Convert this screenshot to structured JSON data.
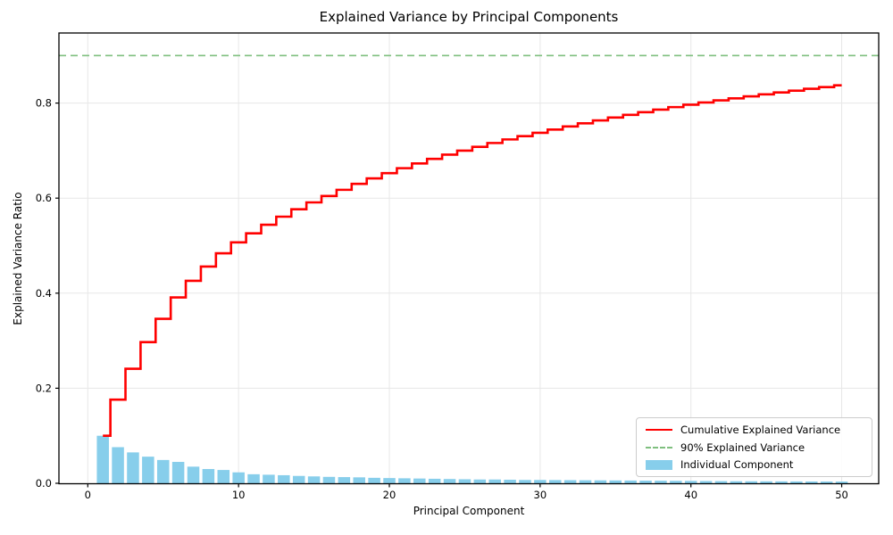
{
  "window": {
    "background": "#ffffff"
  },
  "chart_data": {
    "type": "bar+step-line",
    "title": "Explained Variance by Principal Components",
    "xlabel": "Principal Component",
    "ylabel": "Explained Variance Ratio",
    "x": [
      1,
      2,
      3,
      4,
      5,
      6,
      7,
      8,
      9,
      10,
      11,
      12,
      13,
      14,
      15,
      16,
      17,
      18,
      19,
      20,
      21,
      22,
      23,
      24,
      25,
      26,
      27,
      28,
      29,
      30,
      31,
      32,
      33,
      34,
      35,
      36,
      37,
      38,
      39,
      40,
      41,
      42,
      43,
      44,
      45,
      46,
      47,
      48,
      49,
      50
    ],
    "series": [
      {
        "name": "Cumulative Explained Variance",
        "type": "step",
        "style": "solid",
        "color": "#ff0000",
        "values": [
          0.1,
          0.176,
          0.241,
          0.297,
          0.346,
          0.391,
          0.426,
          0.456,
          0.484,
          0.507,
          0.526,
          0.544,
          0.561,
          0.5765,
          0.591,
          0.6045,
          0.6175,
          0.63,
          0.6415,
          0.6525,
          0.663,
          0.673,
          0.6825,
          0.6915,
          0.7,
          0.708,
          0.716,
          0.7235,
          0.7305,
          0.7375,
          0.7443,
          0.7509,
          0.7573,
          0.7635,
          0.7695,
          0.7753,
          0.7809,
          0.7863,
          0.7915,
          0.7965,
          0.8012,
          0.8057,
          0.81,
          0.8142,
          0.8183,
          0.8223,
          0.8262,
          0.83,
          0.8337,
          0.8373
        ]
      },
      {
        "name": "90% Explained Variance",
        "type": "hline",
        "style": "dashed",
        "color": "#7fbf7f",
        "y": 0.9
      },
      {
        "name": "Individual Component",
        "type": "bar",
        "color": "#87ceeb",
        "values": [
          0.1,
          0.076,
          0.065,
          0.056,
          0.049,
          0.045,
          0.035,
          0.03,
          0.028,
          0.023,
          0.019,
          0.018,
          0.017,
          0.0155,
          0.0145,
          0.0135,
          0.013,
          0.0125,
          0.0115,
          0.011,
          0.0105,
          0.01,
          0.0095,
          0.009,
          0.0085,
          0.008,
          0.008,
          0.0075,
          0.007,
          0.007,
          0.0068,
          0.0066,
          0.0064,
          0.0062,
          0.006,
          0.0058,
          0.0056,
          0.0054,
          0.0052,
          0.005,
          0.0047,
          0.0045,
          0.0043,
          0.0042,
          0.0041,
          0.004,
          0.0039,
          0.0038,
          0.0037,
          0.0036
        ]
      }
    ],
    "x_ticks": [
      0,
      10,
      20,
      30,
      40,
      50
    ],
    "x_tick_labels": [
      "0",
      "10",
      "20",
      "30",
      "40",
      "50"
    ],
    "y_ticks": [
      0.0,
      0.2,
      0.4,
      0.6,
      0.8
    ],
    "y_tick_labels": [
      "0.0",
      "0.2",
      "0.4",
      "0.6",
      "0.8"
    ],
    "xlim": [
      -1.9,
      52.5
    ],
    "ylim": [
      0,
      0.947
    ],
    "grid": true,
    "grid_color": "#e7e7e7",
    "bar_width": 0.8,
    "legend_position": "lower right"
  }
}
